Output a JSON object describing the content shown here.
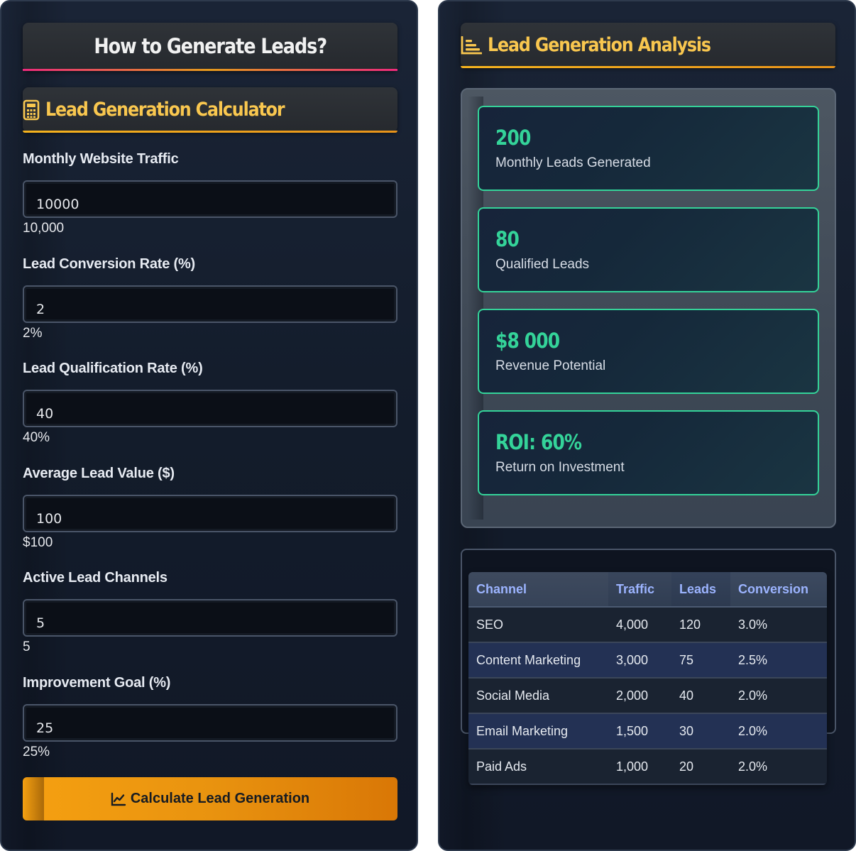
{
  "left_panel": {
    "main_title": "How to Generate Leads?",
    "calculator_title": "Lead Generation Calculator",
    "fields": [
      {
        "label": "Monthly Website Traffic",
        "value": "10000",
        "hint": "10,000"
      },
      {
        "label": "Lead Conversion Rate (%)",
        "value": "2",
        "hint": "2%"
      },
      {
        "label": "Lead Qualification Rate (%)",
        "value": "40",
        "hint": "40%"
      },
      {
        "label": "Average Lead Value ($)",
        "value": "100",
        "hint": "$100"
      },
      {
        "label": "Active Lead Channels",
        "value": "5",
        "hint": "5"
      },
      {
        "label": "Improvement Goal (%)",
        "value": "25",
        "hint": "25%"
      }
    ],
    "calculate_button": "Calculate Lead Generation"
  },
  "right_panel": {
    "analysis_title": "Lead Generation Analysis",
    "results": [
      {
        "value": "200",
        "label": "Monthly Leads Generated"
      },
      {
        "value": "80",
        "label": "Qualified Leads"
      },
      {
        "value": "$8 000",
        "label": "Revenue Potential"
      },
      {
        "value": "ROI: 60%",
        "label": "Return on Investment"
      }
    ],
    "table": {
      "headers": [
        "Channel",
        "Traffic",
        "Leads",
        "Conversion"
      ],
      "rows": [
        [
          "SEO",
          "4,000",
          "120",
          "3.0%"
        ],
        [
          "Content Marketing",
          "3,000",
          "75",
          "2.5%"
        ],
        [
          "Social Media",
          "2,000",
          "40",
          "2.0%"
        ],
        [
          "Email Marketing",
          "1,500",
          "30",
          "2.0%"
        ],
        [
          "Paid Ads",
          "1,000",
          "20",
          "2.0%"
        ]
      ]
    }
  },
  "colors": {
    "accent_gold": "#f9c74f",
    "accent_green": "#34d399",
    "accent_pink": "#ec2a7c",
    "button_orange": "#f5a011",
    "table_header_text": "#9cb4ff"
  },
  "icons": {
    "calculator": "calculator-icon",
    "analysis": "bar-chart-icon",
    "button": "line-chart-icon"
  }
}
